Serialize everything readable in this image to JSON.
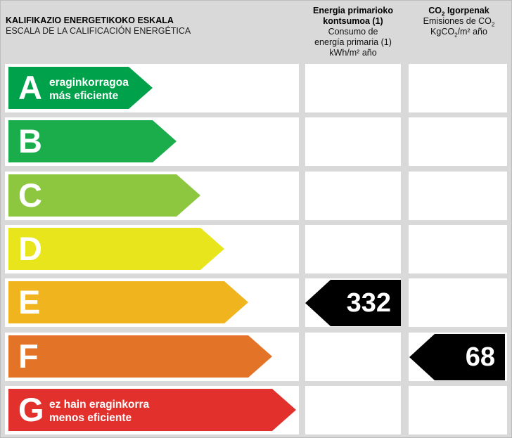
{
  "header": {
    "scale_title": "KALIFIKAZIO ENERGETIKOKO ESKALA",
    "scale_subtitle": "ESCALA DE LA CALIFICACIÓN ENERGÉTICA",
    "energy": {
      "line1": "Energia primarioko",
      "line2": "kontsumoa (1)",
      "line3": "Consumo de",
      "line4": "energía primaria (1)",
      "unit": "kWh/m² año"
    },
    "co2": {
      "co": "CO",
      "sub": "2",
      "title_rest": " Igorpenak",
      "line2_a": "Emisiones de CO",
      "line2_sub": "2",
      "line3_a": "KgCO",
      "line3_sub": "2",
      "line3_b": "/m² año"
    }
  },
  "ratings": [
    {
      "letter": "A",
      "color": "#00a14b",
      "desc1": "eraginkorragoa",
      "desc2": "más eficiente"
    },
    {
      "letter": "B",
      "color": "#1bac4b",
      "desc1": "",
      "desc2": ""
    },
    {
      "letter": "C",
      "color": "#8dc63f",
      "desc1": "",
      "desc2": ""
    },
    {
      "letter": "D",
      "color": "#e8e51c",
      "desc1": "",
      "desc2": ""
    },
    {
      "letter": "E",
      "color": "#f0b41f",
      "desc1": "",
      "desc2": ""
    },
    {
      "letter": "F",
      "color": "#e37326",
      "desc1": "",
      "desc2": ""
    },
    {
      "letter": "G",
      "color": "#e2312d",
      "desc1": "ez hain eraginkorra",
      "desc2": "menos eficiente"
    }
  ],
  "energy_value": {
    "rating": "E",
    "value": "332"
  },
  "co2_value": {
    "rating": "F",
    "value": "68"
  }
}
